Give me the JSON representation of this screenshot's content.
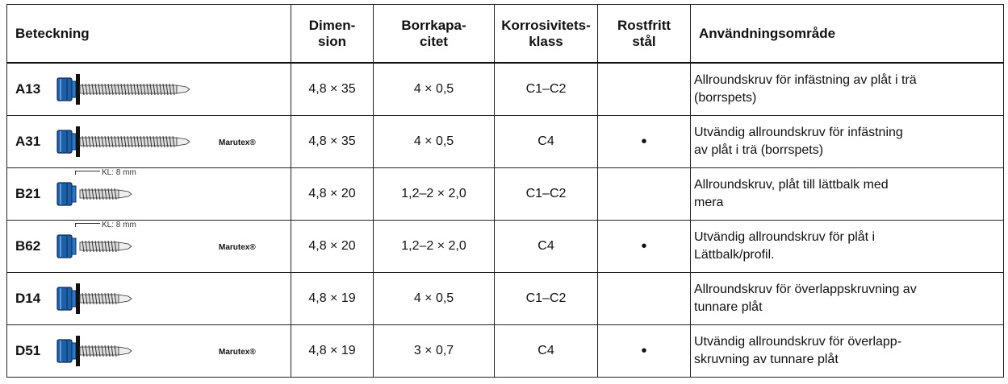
{
  "table": {
    "header": [
      "Beteckning",
      "Dimen-\nsion",
      "Borrkapa-\ncitet",
      "Korrosivitets-\nklass",
      "Rostfritt\nstål",
      "Användningsområde"
    ],
    "rows": [
      {
        "code": "A13",
        "dimension": "4,8 × 35",
        "drill_capacity": "4 × 0,5",
        "corrosion_class": "C1–C2",
        "usage": "Allroundskruv för infästning av plåt i trä\n(borrspets)"
      },
      {
        "code": "A31",
        "brand": "Marutex®",
        "dimension": "4,8 × 35",
        "drill_capacity": "4 × 0,5",
        "corrosion_class": "C4",
        "stainless": "•",
        "usage": "Utvändig allroundskruv för infästning\nav plåt i trä (borrspets)"
      },
      {
        "code": "B21",
        "kl_label": "KL: 8 mm",
        "dimension": "4,8 × 20",
        "drill_capacity": "1,2–2 × 2,0",
        "corrosion_class": "C1–C2",
        "usage": "Allroundskruv, plåt till lättbalk med\nmera"
      },
      {
        "code": "B62",
        "kl_label": "KL: 8 mm",
        "brand": "Marutex®",
        "dimension": "4,8 × 20",
        "drill_capacity": "1,2–2 × 2,0",
        "corrosion_class": "C4",
        "stainless": "•",
        "usage": "Utvändig allroundskruv för plåt i\nLättbalk/profil."
      },
      {
        "code": "D14",
        "dimension": "4,8 × 19",
        "drill_capacity": "4 × 0,5",
        "corrosion_class": "C1–C2",
        "usage": "Allroundskruv för överlappskruvning av\ntunnare plåt"
      },
      {
        "code": "D51",
        "brand": "Marutex®",
        "dimension": "4,8 × 19",
        "drill_capacity": "3 × 0,7",
        "corrosion_class": "C4",
        "stainless": "•",
        "usage": "Utvändig allroundskruv för överlapp-\nskruvning av tunnare plåt"
      }
    ]
  }
}
